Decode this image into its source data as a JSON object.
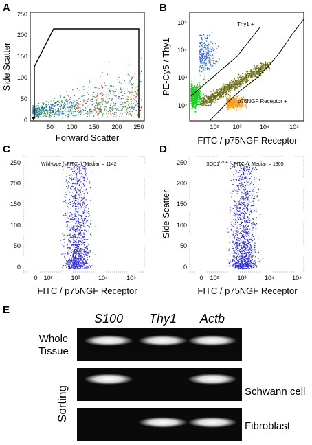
{
  "panels": {
    "A": {
      "label": "A",
      "xlabel": "Forward Scatter",
      "ylabel": "Side Scatter",
      "xticks": [
        "50",
        "100",
        "150",
        "200",
        "250"
      ],
      "yticks": [
        "0",
        "50",
        "100",
        "150",
        "200",
        "250"
      ]
    },
    "B": {
      "label": "B",
      "xlabel": "FITC / p75NGF Receptor",
      "ylabel": "PE-Cy5 / Thy1",
      "gate_upper": "Thy1 +",
      "gate_lower": "p75NGF Receptor +",
      "xticks": [
        "10²",
        "10³",
        "10⁴",
        "10⁵"
      ],
      "yticks": [
        "10²",
        "10³",
        "10⁴",
        "10⁵"
      ]
    },
    "C": {
      "label": "C",
      "title": "Wild-type (<FITC>): Median = 1142",
      "xlabel": "FITC / p75NGF Receptor",
      "ylabel": "Side Scatter",
      "xticks": [
        "0",
        "10²",
        "10³",
        "10⁴",
        "10⁵"
      ],
      "yticks": [
        "0",
        "50",
        "100",
        "150",
        "200",
        "250"
      ]
    },
    "D": {
      "label": "D",
      "title_pre": "SOD1",
      "title_sup": "G93A",
      "title_post": " (<FITC>): Median = 1305",
      "xlabel": "FITC / p75NGF Receptor",
      "ylabel": "Side Scatter",
      "xticks": [
        "0",
        "10²",
        "10³",
        "10⁴",
        "10⁵"
      ],
      "yticks": [
        "0",
        "50",
        "100",
        "150",
        "200",
        "250"
      ]
    },
    "E": {
      "label": "E",
      "genes": [
        "S100",
        "Thy1",
        "Actb"
      ],
      "row_whole_1": "Whole",
      "row_whole_2": "Tissue",
      "group_sorting": "Sorting",
      "row_schwann": "Schwann cell",
      "row_fibro": "Fibroblast",
      "band_presence": {
        "whole": [
          1,
          1,
          1
        ],
        "schwann": [
          1,
          0,
          1
        ],
        "fibroblast": [
          0,
          1,
          1
        ]
      }
    }
  },
  "colors": {
    "dots_blue": "#2a2ad8",
    "gel_bg": "#0a0a0a",
    "band": "#e8e8e8"
  }
}
